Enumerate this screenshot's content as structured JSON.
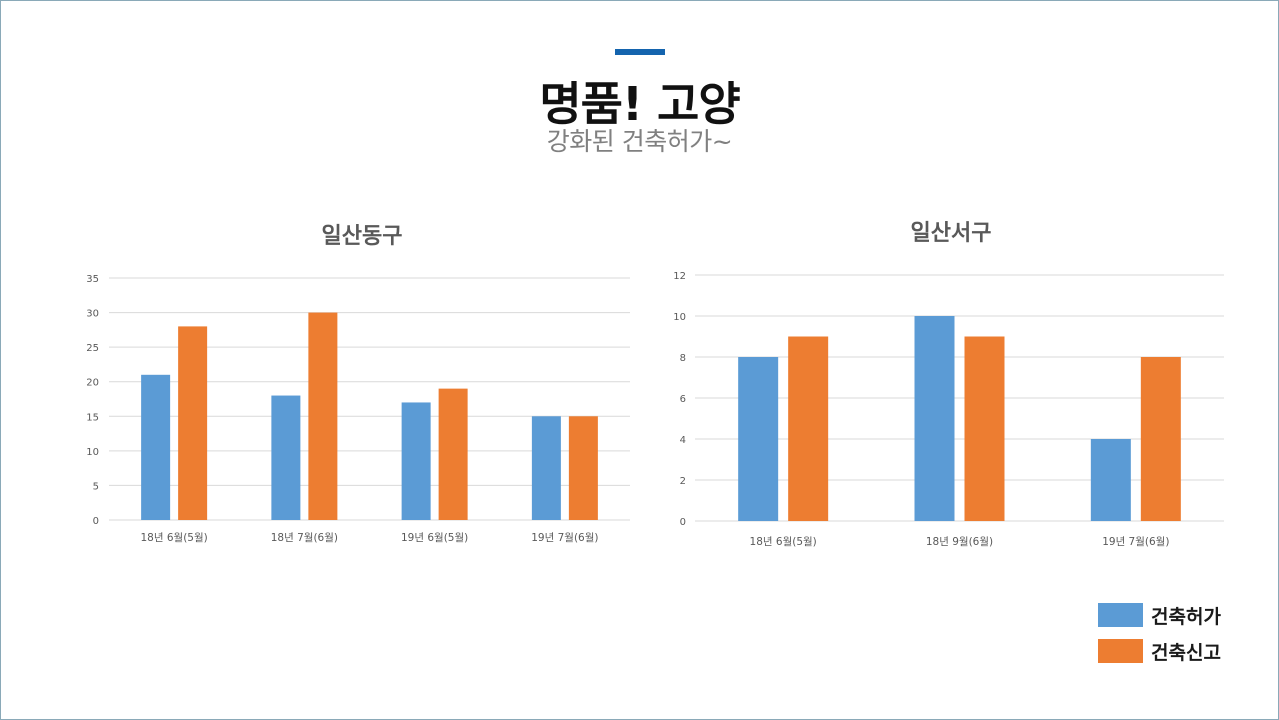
{
  "page": {
    "title": "명품! 고양",
    "subtitle": "강화된 건축허가~",
    "accent_color": "#1464ae"
  },
  "legend": {
    "items": [
      {
        "label": "건축허가",
        "color": "#5b9bd5"
      },
      {
        "label": "건축신고",
        "color": "#ed7d31"
      }
    ]
  },
  "chart_data": [
    {
      "type": "bar",
      "title": "일산동구",
      "categories": [
        "18년 6월(5월)",
        "18년 7월(6월)",
        "19년 6월(5월)",
        "19년 7월(6월)"
      ],
      "series": [
        {
          "name": "건축허가",
          "values": [
            21,
            18,
            17,
            15
          ],
          "color": "#5b9bd5"
        },
        {
          "name": "건축신고",
          "values": [
            28,
            30,
            19,
            15
          ],
          "color": "#ed7d31"
        }
      ],
      "ylim": [
        0,
        35
      ],
      "yticks": [
        0,
        5,
        10,
        15,
        20,
        25,
        30,
        35
      ],
      "grid": true
    },
    {
      "type": "bar",
      "title": "일산서구",
      "categories": [
        "18년 6월(5월)",
        "18년 9월(6월)",
        "19년 7월(6월)"
      ],
      "series": [
        {
          "name": "건축허가",
          "values": [
            8,
            10,
            4
          ],
          "color": "#5b9bd5"
        },
        {
          "name": "건축신고",
          "values": [
            9,
            9,
            8
          ],
          "color": "#ed7d31"
        }
      ],
      "ylim": [
        0,
        12
      ],
      "yticks": [
        0,
        2,
        4,
        6,
        8,
        10,
        12
      ],
      "grid": true
    }
  ]
}
